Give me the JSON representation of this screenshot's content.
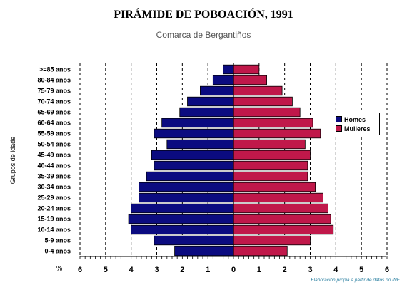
{
  "chart_data": {
    "type": "bar",
    "orientation": "horizontal-pyramid",
    "title": "PIRÁMIDE DE POBOACIÓN, 1991",
    "subtitle": "Comarca de Bergantiños",
    "ylabel": "Grupos de idade",
    "xlabel_unit": "%",
    "note": "Elaboración propia a partir de datos do INE",
    "categories": [
      ">=85 anos",
      "80-84 anos",
      "75-79 anos",
      "70-74 anos",
      "65-69 anos",
      "60-64 anos",
      "55-59 anos",
      "50-54 anos",
      "45-49 anos",
      "40-44 anos",
      "35-39 anos",
      "30-34 anos",
      "25-29 anos",
      "20-24 anos",
      "15-19 anos",
      "10-14 anos",
      "5-9 anos",
      "0-4 anos"
    ],
    "series": [
      {
        "name": "Homes",
        "color": "#0b0b80",
        "side": "left",
        "values": [
          0.4,
          0.8,
          1.3,
          1.8,
          2.1,
          2.8,
          3.1,
          2.6,
          3.2,
          3.1,
          3.4,
          3.7,
          3.7,
          4.0,
          4.1,
          4.0,
          3.1,
          2.3
        ]
      },
      {
        "name": "Mulleres",
        "color": "#c0184a",
        "side": "right",
        "values": [
          1.0,
          1.3,
          1.9,
          2.3,
          2.6,
          3.1,
          3.4,
          2.8,
          3.0,
          2.9,
          2.9,
          3.2,
          3.5,
          3.7,
          3.8,
          3.9,
          3.0,
          2.1
        ]
      }
    ],
    "xticks": [
      "6",
      "5",
      "4",
      "3",
      "2",
      "1",
      "0",
      "1",
      "2",
      "3",
      "4",
      "5",
      "6"
    ],
    "xlim": [
      -6,
      6
    ],
    "grid": "vertical dashed",
    "legend_position": "right"
  }
}
